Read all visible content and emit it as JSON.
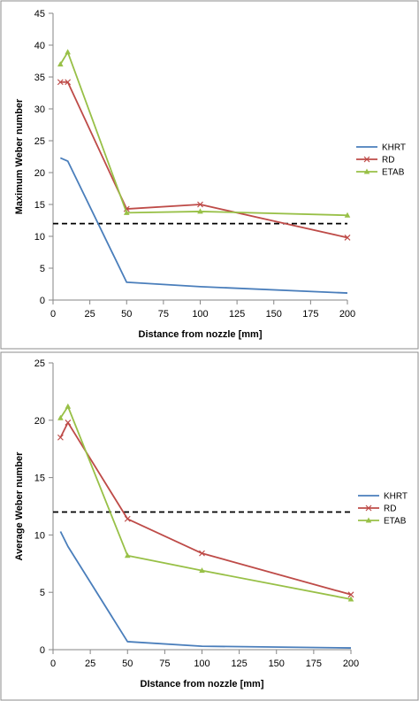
{
  "chart_data": [
    {
      "type": "line",
      "xlabel": "Distance from nozzle [mm]",
      "ylabel": "Maximum Weber number",
      "xlim": [
        0,
        200
      ],
      "ylim": [
        0,
        45
      ],
      "xticks": [
        0,
        25,
        50,
        75,
        100,
        125,
        150,
        175,
        200
      ],
      "yticks": [
        0,
        5,
        10,
        15,
        20,
        25,
        30,
        35,
        40,
        45
      ],
      "grid": false,
      "legend_position": "right",
      "reference_line": {
        "y": 12,
        "style": "dashed",
        "color": "#000000"
      },
      "series": [
        {
          "name": "KHRT",
          "color": "#4a7ebb",
          "marker": "none",
          "x": [
            5,
            10,
            50,
            100,
            200
          ],
          "y": [
            22.3,
            21.8,
            2.8,
            2.1,
            1.1
          ]
        },
        {
          "name": "RD",
          "color": "#be4b48",
          "marker": "x",
          "x": [
            5,
            10,
            50,
            100,
            200
          ],
          "y": [
            34.2,
            34.2,
            14.3,
            15.0,
            9.8
          ]
        },
        {
          "name": "ETAB",
          "color": "#98c047",
          "marker": "triangle",
          "x": [
            5,
            10,
            50,
            100,
            200
          ],
          "y": [
            37.0,
            38.9,
            13.7,
            13.9,
            13.3
          ]
        }
      ]
    },
    {
      "type": "line",
      "xlabel": "DIstance from nozzle [mm]",
      "ylabel": "Average Weber number",
      "xlim": [
        0,
        200
      ],
      "ylim": [
        0,
        25
      ],
      "xticks": [
        0,
        25,
        50,
        75,
        100,
        125,
        150,
        175,
        200
      ],
      "yticks": [
        0,
        5,
        10,
        15,
        20,
        25
      ],
      "grid": false,
      "legend_position": "right",
      "reference_line": {
        "y": 12,
        "style": "dashed",
        "color": "#000000"
      },
      "series": [
        {
          "name": "KHRT",
          "color": "#4a7ebb",
          "marker": "none",
          "x": [
            5,
            10,
            50,
            100,
            200
          ],
          "y": [
            10.3,
            9.0,
            0.7,
            0.3,
            0.15
          ]
        },
        {
          "name": "RD",
          "color": "#be4b48",
          "marker": "x",
          "x": [
            5,
            10,
            50,
            100,
            200
          ],
          "y": [
            18.5,
            19.8,
            11.4,
            8.4,
            4.8
          ]
        },
        {
          "name": "ETAB",
          "color": "#98c047",
          "marker": "triangle",
          "x": [
            5,
            10,
            50,
            100,
            200
          ],
          "y": [
            20.2,
            21.2,
            8.2,
            6.9,
            4.4
          ]
        }
      ]
    }
  ]
}
